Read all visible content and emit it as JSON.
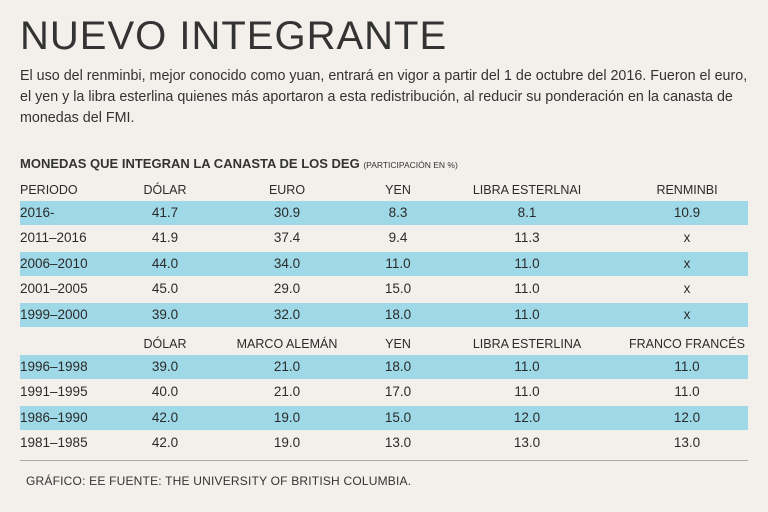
{
  "title": "NUEVO INTEGRANTE",
  "intro": "El uso del renminbi, mejor conocido como yuan, entrará en vigor a partir del 1 de octubre del 2016. Fueron el euro, el yen y la libra esterlina quienes más aportaron a esta redistribución, al reducir su ponderación en la canasta de monedas del FMI.",
  "subtitle": "MONEDAS QUE INTEGRAN LA CANASTA DE LOS DEG",
  "subtitle_note": "(PARTICIPACIÓN EN %)",
  "footer": "GRÁFICO: EE  FUENTE: THE UNIVERSITY OF BRITISH COLUMBIA.",
  "colors": {
    "highlight": "#9fd8e6",
    "background": "#f3f0eb"
  },
  "chart_data": [
    {
      "type": "table",
      "title": "MONEDAS QUE INTEGRAN LA CANASTA DE LOS DEG",
      "columns": [
        "PERIODO",
        "DÓLAR",
        "EURO",
        "YEN",
        "LIBRA ESTERLNAI",
        "RENMINBI"
      ],
      "rows": [
        [
          "2016-",
          "41.7",
          "30.9",
          "8.3",
          "8.1",
          "10.9"
        ],
        [
          "2011–2016",
          "41.9",
          "37.4",
          "9.4",
          "11.3",
          "x"
        ],
        [
          "2006–2010",
          "44.0",
          "34.0",
          "11.0",
          "11.0",
          "x"
        ],
        [
          "2001–2005",
          "45.0",
          "29.0",
          "15.0",
          "11.0",
          "x"
        ],
        [
          "1999–2000",
          "39.0",
          "32.0",
          "18.0",
          "11.0",
          "x"
        ]
      ]
    },
    {
      "type": "table",
      "columns": [
        "",
        "DÓLAR",
        "MARCO ALEMÁN",
        "YEN",
        "LIBRA ESTERLINA",
        "FRANCO FRANCÉS"
      ],
      "rows": [
        [
          "1996–1998",
          "39.0",
          "21.0",
          "18.0",
          "11.0",
          "11.0"
        ],
        [
          "1991–1995",
          "40.0",
          "21.0",
          "17.0",
          "11.0",
          "11.0"
        ],
        [
          "1986–1990",
          "42.0",
          "19.0",
          "15.0",
          "12.0",
          "12.0"
        ],
        [
          "1981–1985",
          "42.0",
          "19.0",
          "13.0",
          "13.0",
          "13.0"
        ]
      ]
    }
  ]
}
